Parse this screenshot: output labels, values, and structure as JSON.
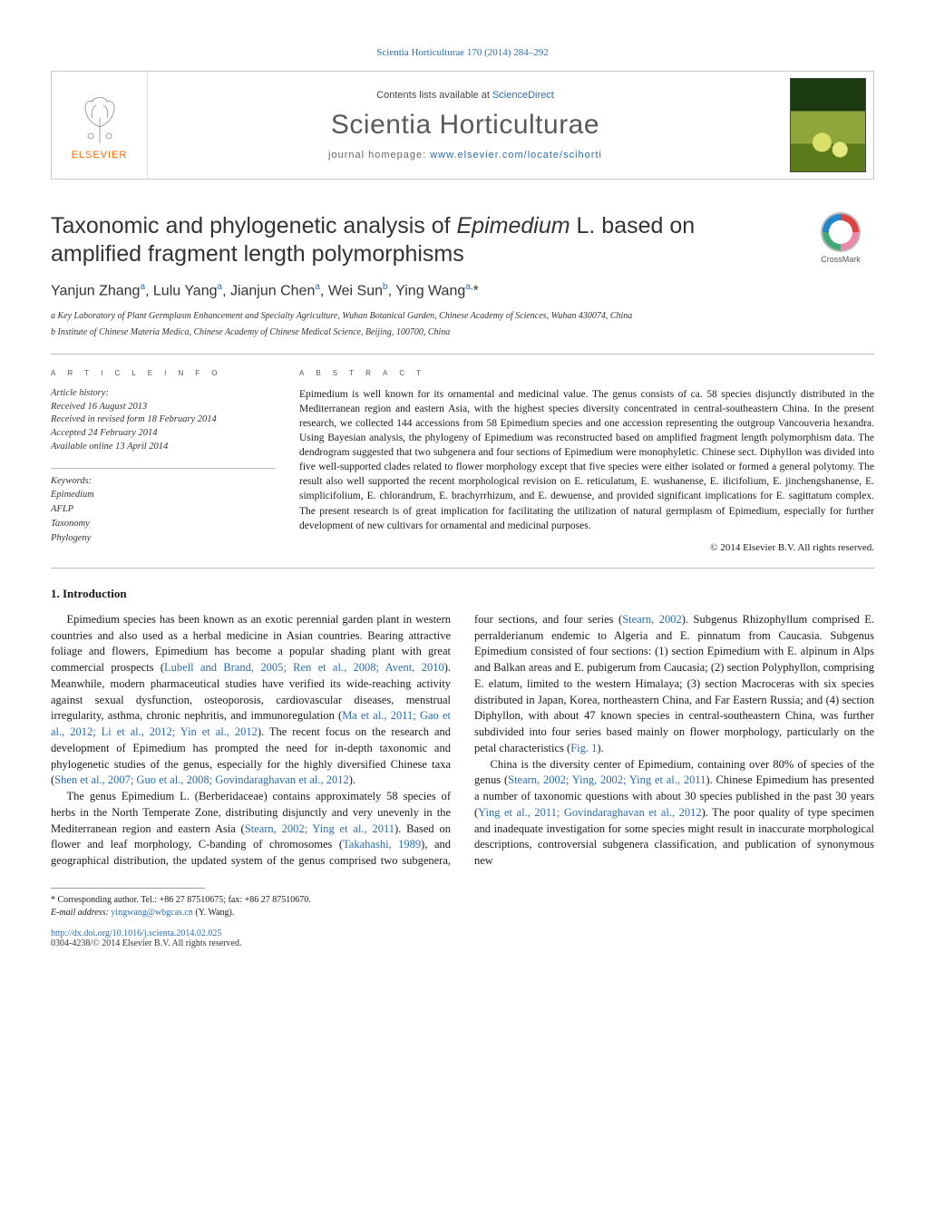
{
  "journal_ref": "Scientia Horticulturae 170 (2014) 284–292",
  "header": {
    "contents_prefix": "Contents lists available at ",
    "contents_link": "ScienceDirect",
    "journal_title": "Scientia Horticulturae",
    "home_prefix": "journal homepage: ",
    "home_link": "www.elsevier.com/locate/scihorti",
    "publisher": "ELSEVIER"
  },
  "crossmark_label": "CrossMark",
  "title_pre": "Taxonomic and phylogenetic analysis of ",
  "title_ital": "Epimedium",
  "title_post": " L. based on amplified fragment length polymorphisms",
  "authors_html": "Yanjun Zhang<sup>a</sup>, Lulu Yang<sup>a</sup>, Jianjun Chen<sup>a</sup>, Wei Sun<sup>b</sup>, Ying Wang<sup>a,</sup>*",
  "affiliations": [
    "a Key Laboratory of Plant Germplasm Enhancement and Specialty Agriculture, Wuhan Botanical Garden, Chinese Academy of Sciences, Wuhan 430074, China",
    "b Institute of Chinese Materia Medica, Chinese Academy of Chinese Medical Science, Beijing, 100700, China"
  ],
  "section_labels": {
    "article_info": "a r t i c l e   i n f o",
    "abstract": "a b s t r a c t"
  },
  "history": {
    "label": "Article history:",
    "received": "Received 16 August 2013",
    "revised": "Received in revised form 18 February 2014",
    "accepted": "Accepted 24 February 2014",
    "online": "Available online 13 April 2014"
  },
  "keywords": {
    "label": "Keywords:",
    "items": [
      "Epimedium",
      "AFLP",
      "Taxonomy",
      "Phylogeny"
    ]
  },
  "abstract": "Epimedium is well known for its ornamental and medicinal value. The genus consists of ca. 58 species disjunctly distributed in the Mediterranean region and eastern Asia, with the highest species diversity concentrated in central-southeastern China. In the present research, we collected 144 accessions from 58 Epimedium species and one accession representing the outgroup Vancouveria hexandra. Using Bayesian analysis, the phylogeny of Epimedium was reconstructed based on amplified fragment length polymorphism data. The dendrogram suggested that two subgenera and four sections of Epimedium were monophyletic. Chinese sect. Diphyllon was divided into five well-supported clades related to flower morphology except that five species were either isolated or formed a general polytomy. The result also well supported the recent morphological revision on E. reticulatum, E. wushanense, E. ilicifolium, E. jinchengshanense, E. simplicifolium, E. chlorandrum, E. brachyrrhizum, and E. dewuense, and provided significant implications for E. sagittatum complex. The present research is of great implication for facilitating the utilization of natural germplasm of Epimedium, especially for further development of new cultivars for ornamental and medicinal purposes.",
  "copyright": "© 2014 Elsevier B.V. All rights reserved.",
  "intro_heading": "1. Introduction",
  "intro_paragraphs": [
    "Epimedium species has been known as an exotic perennial garden plant in western countries and also used as a herbal medicine in Asian countries. Bearing attractive foliage and flowers, Epimedium has become a popular shading plant with great commercial prospects (<a class=\"ref\" data-name=\"citation-link\" data-interactable=\"true\">Lubell and Brand, 2005; Ren et al., 2008; Avent, 2010</a>). Meanwhile, modern pharmaceutical studies have verified its wide-reaching activity against sexual dysfunction, osteoporosis, cardiovascular diseases, menstrual irregularity, asthma, chronic nephritis, and immunoregulation (<a class=\"ref\" data-name=\"citation-link\" data-interactable=\"true\">Ma et al., 2011; Gao et al., 2012; Li et al., 2012; Yin et al., 2012</a>). The recent focus on the research and development of Epimedium has prompted the need for in-depth taxonomic and phylogenetic studies of the genus, especially for the highly diversified Chinese taxa (<a class=\"ref\" data-name=\"citation-link\" data-interactable=\"true\">Shen et al., 2007; Guo et al., 2008; Govindaraghavan et al., 2012</a>).",
    "The genus Epimedium L. (Berberidaceae) contains approximately 58 species of herbs in the North Temperate Zone, distributing disjunctly and very unevenly in the Mediterranean region and eastern Asia (<a class=\"ref\" data-name=\"citation-link\" data-interactable=\"true\">Stearn, 2002; Ying et al., 2011</a>). Based on flower and leaf morphology, C-banding of chromosomes (<a class=\"ref\" data-name=\"citation-link\" data-interactable=\"true\">Takahashi, 1989</a>), and geographical distribution, the updated system of the genus comprised two subgenera, four sections, and four series (<a class=\"ref\" data-name=\"citation-link\" data-interactable=\"true\">Stearn, 2002</a>). Subgenus Rhizophyllum comprised E. perralderianum endemic to Algeria and E. pinnatum from Caucasia. Subgenus Epimedium consisted of four sections: (1) section Epimedium with E. alpinum in Alps and Balkan areas and E. pubigerum from Caucasia; (2) section Polyphyllon, comprising E. elatum, limited to the western Himalaya; (3) section Macroceras with six species distributed in Japan, Korea, northeastern China, and Far Eastern Russia; and (4) section Diphyllon, with about 47 known species in central-southeastern China, was further subdivided into four series based mainly on flower morphology, particularly on the petal characteristics (<a class=\"ref\" data-name=\"citation-link\" data-interactable=\"true\">Fig. 1</a>).",
    "China is the diversity center of Epimedium, containing over 80% of species of the genus (<a class=\"ref\" data-name=\"citation-link\" data-interactable=\"true\">Stearn, 2002; Ying, 2002; Ying et al., 2011</a>). Chinese Epimedium has presented a number of taxonomic questions with about 30 species published in the past 30 years (<a class=\"ref\" data-name=\"citation-link\" data-interactable=\"true\">Ying et al., 2011; Govindaraghavan et al., 2012</a>). The poor quality of type specimen and inadequate investigation for some species might result in inaccurate morphological descriptions, controversial subgenera classification, and publication of synonymous new"
  ],
  "footnote": {
    "corr": "* Corresponding author. Tel.: +86 27 87510675; fax: +86 27 87510670.",
    "email_label": "E-mail address: ",
    "email": "yingwang@wbgcas.cn",
    "email_author": " (Y. Wang)."
  },
  "doi": {
    "link": "http://dx.doi.org/10.1016/j.scienta.2014.02.025",
    "issn": "0304-4238/© 2014 Elsevier B.V. All rights reserved."
  },
  "colors": {
    "link": "#2b6cb0",
    "elsevier_orange": "#ff6a00",
    "rule": "#bcbcbc"
  }
}
